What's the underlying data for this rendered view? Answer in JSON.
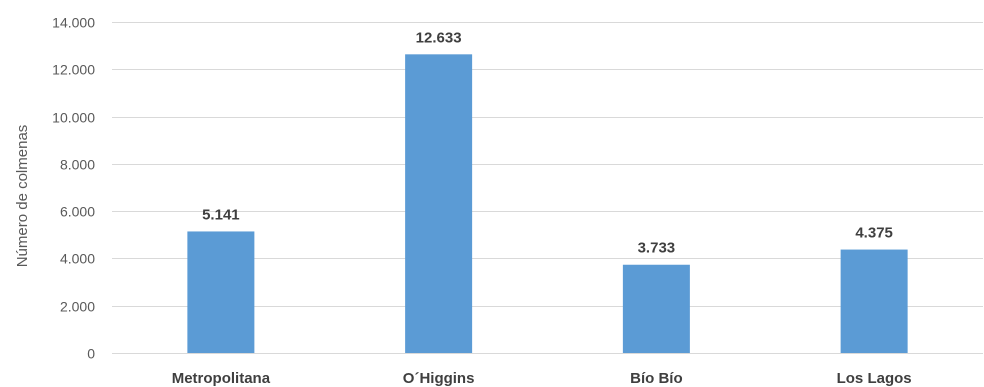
{
  "chart_data": {
    "type": "bar",
    "categories": [
      "Metropolitana",
      "O´Higgins",
      "Bío Bío",
      "Los Lagos"
    ],
    "values": [
      5141,
      12633,
      3733,
      4375
    ],
    "data_labels": [
      "5.141",
      "12.633",
      "3.733",
      "4.375"
    ],
    "ylabel": "Número de colmenas",
    "xlabel": "",
    "ylim": [
      0,
      14000
    ],
    "yticks": [
      0,
      2000,
      4000,
      6000,
      8000,
      10000,
      12000,
      14000
    ],
    "ytick_labels": [
      "0",
      "2.000",
      "4.000",
      "6.000",
      "8.000",
      "10.000",
      "12.000",
      "14.000"
    ],
    "grid": true,
    "bar_color": "#5b9bd5",
    "grid_color": "#d9d9d9"
  }
}
